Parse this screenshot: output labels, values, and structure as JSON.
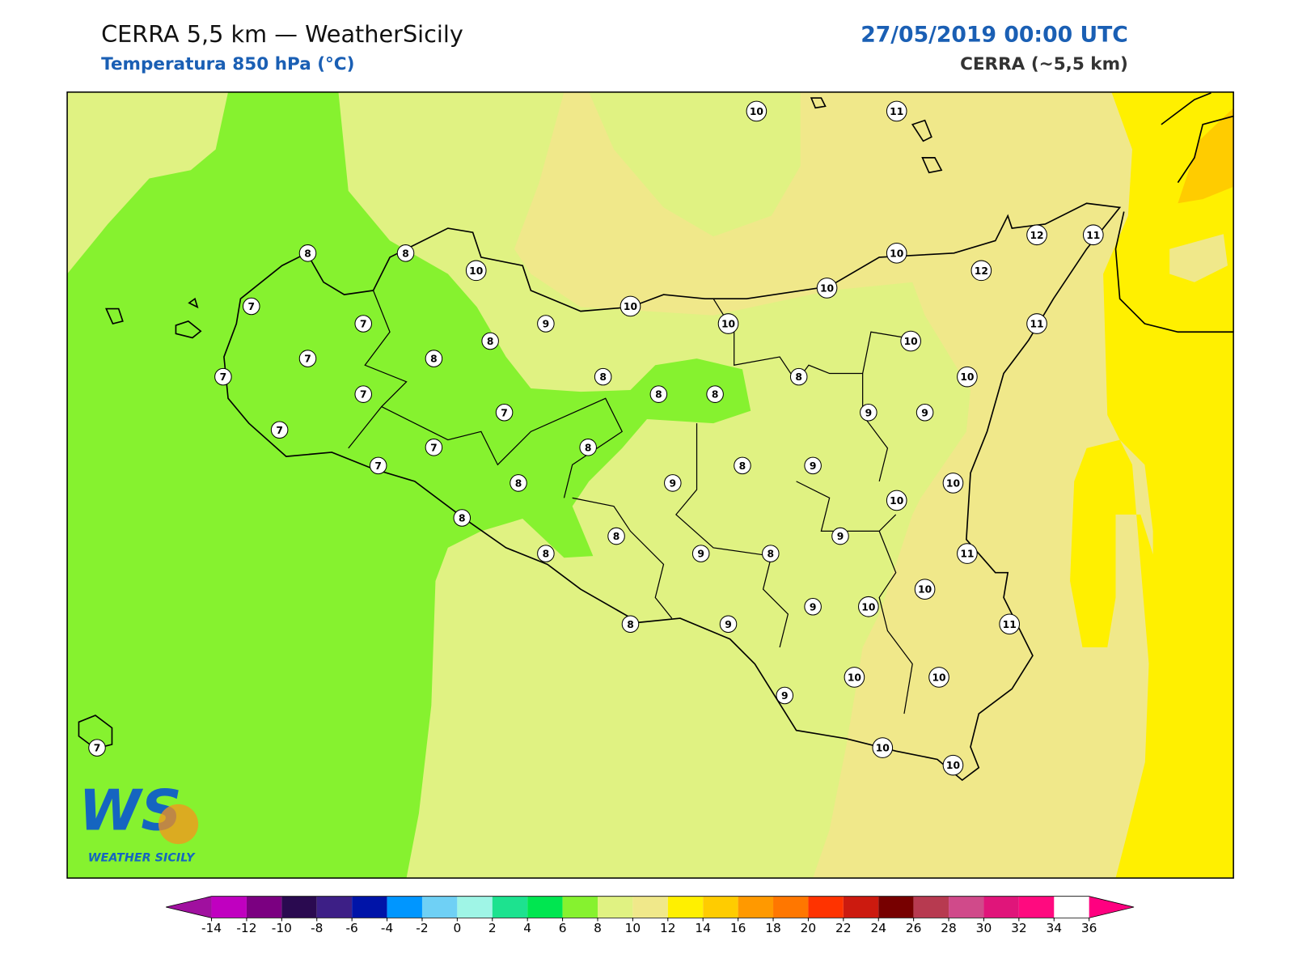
{
  "header": {
    "title": "CERRA 5,5 km — WeatherSicily",
    "subtitle": "Temperatura 850 hPa (°C)",
    "datetime": "27/05/2019 00:00 UTC",
    "model": "CERRA (~5,5 km)"
  },
  "stations": [
    10,
    11,
    8,
    8,
    10,
    10,
    12,
    11,
    12,
    7,
    10,
    10,
    7,
    9,
    10,
    11,
    10,
    7,
    8,
    8,
    7,
    8,
    8,
    10,
    7,
    8,
    8,
    7,
    9,
    9,
    7,
    7,
    8,
    7,
    8,
    9,
    8,
    9,
    10,
    10,
    8,
    8,
    9,
    8,
    9,
    8,
    11,
    10,
    9,
    10,
    8,
    9,
    11,
    10,
    10,
    9,
    10,
    10,
    7
  ],
  "logo": {
    "mark": "WS",
    "name": "WEATHER SICILY"
  },
  "colorbar": {
    "ticks": [
      -14,
      -12,
      -10,
      -8,
      -6,
      -4,
      -2,
      0,
      2,
      4,
      6,
      8,
      10,
      12,
      14,
      16,
      18,
      20,
      22,
      24,
      26,
      28,
      30,
      32,
      34,
      36
    ],
    "colors": [
      "#c000c0",
      "#7b0081",
      "#2a0a50",
      "#3d1f86",
      "#0014a8",
      "#0096ff",
      "#6fd0f5",
      "#9ff5e6",
      "#1de28f",
      "#00e650",
      "#86f22f",
      "#e0f282",
      "#f0e88a",
      "#fff000",
      "#ffcc00",
      "#ff9900",
      "#ff7700",
      "#ff3300",
      "#cc1a0f",
      "#770000",
      "#b73a50",
      "#d04a8a",
      "#e0157a",
      "#ff0a7f"
    ],
    "under": "#a0109f",
    "over": "#ff0080"
  }
}
